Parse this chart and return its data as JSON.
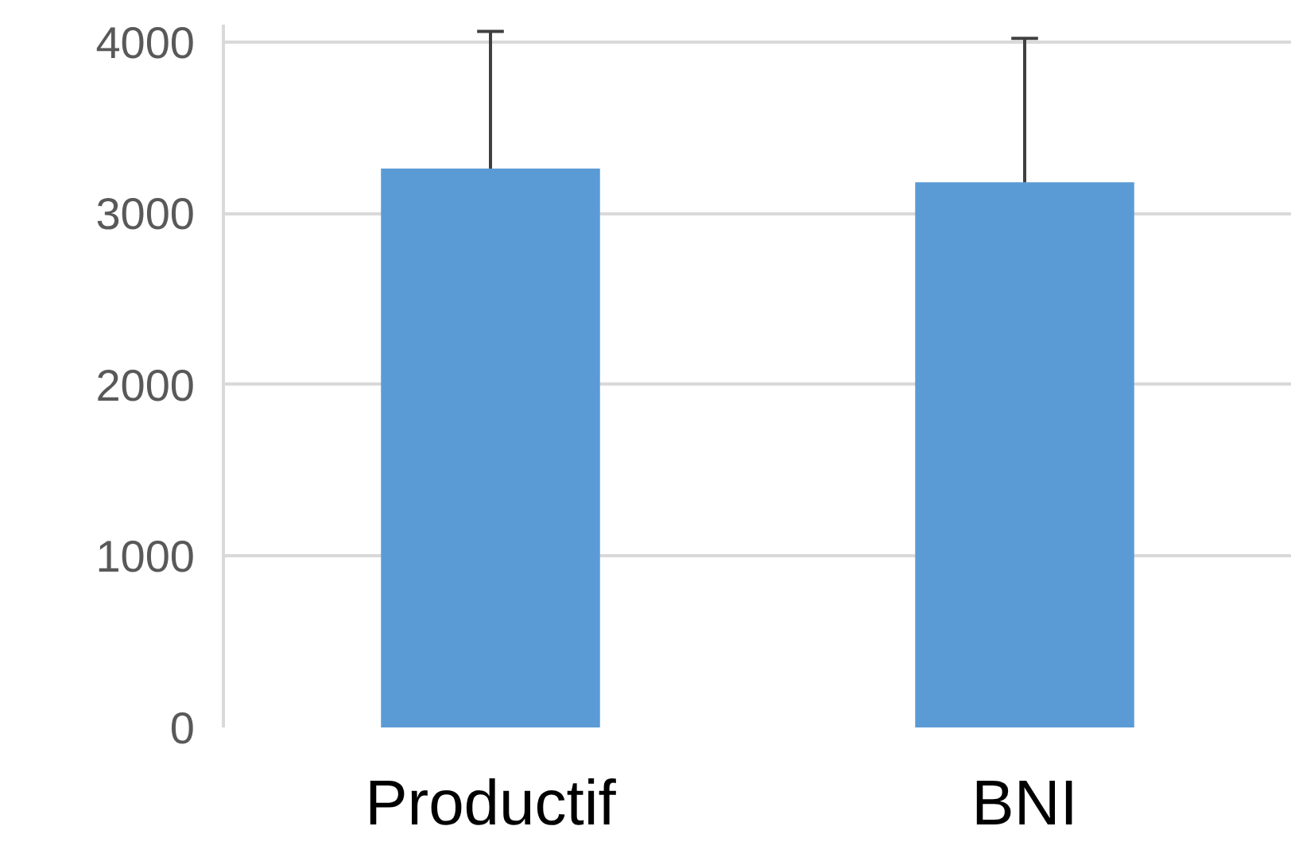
{
  "chart_data": {
    "type": "bar",
    "categories": [
      "Productif",
      "BNI"
    ],
    "values": [
      3260,
      3180
    ],
    "color": "#5b9bd5",
    "errors": [
      [
        3260,
        4060
      ],
      [
        3180,
        4020
      ]
    ],
    "ylim": [
      0,
      4100
    ],
    "yticks": [
      0,
      1000,
      2000,
      3000,
      4000
    ],
    "grid": "y"
  }
}
